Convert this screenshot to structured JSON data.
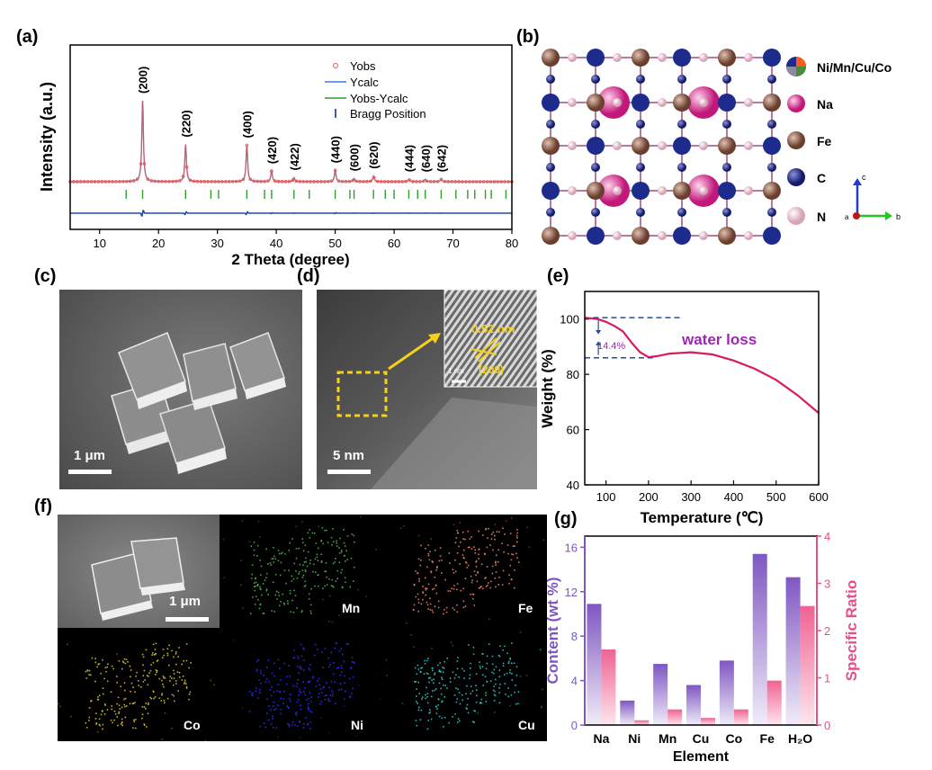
{
  "panels": {
    "a": "(a)",
    "b": "(b)",
    "c": "(c)",
    "d": "(d)",
    "e": "(e)",
    "f": "(f)",
    "g": "(g)"
  },
  "xrd": {
    "ylabel": "Intensity (a.u.)",
    "xlabel": "2 Theta (degree)",
    "legend": [
      "Yobs",
      "Ycalc",
      "Yobs-Ycalc",
      "Bragg Position"
    ],
    "peak_labels": [
      "(200)",
      "(220)",
      "(400)",
      "(420)",
      "(422)",
      "(440)",
      "(600)",
      "(620)",
      "(444)",
      "(640)",
      "(642)"
    ]
  },
  "crystal": {
    "legend": [
      "Ni/Mn/Cu/Co",
      "Na",
      "Fe",
      "C",
      "N"
    ],
    "axes": [
      "c",
      "b",
      "a"
    ]
  },
  "sem_c": {
    "scale": "1 μm"
  },
  "tem_d": {
    "scale": "5 nm",
    "d_spacing": "0.52 nm",
    "plane": "(200)",
    "inset_scale": "1 nm"
  },
  "tga": {
    "ylabel": "Weight (%)",
    "xlabel": "Temperature (℃)",
    "annotation": "water loss",
    "loss": "14.4%"
  },
  "eds": {
    "scale": "1 μm",
    "maps": [
      "Mn",
      "Fe",
      "Co",
      "Ni",
      "Cu"
    ]
  },
  "composition": {
    "ylabel_left": "Content (wt %)",
    "ylabel_right": "Specific Ratio",
    "xlabel": "Element"
  },
  "colors": {
    "yobs": "#e05a5a",
    "ycalc": "#3b7dd8",
    "diff": "#1f4e9a",
    "bragg": "#2e9e2e",
    "tga_line": "#d81b60",
    "tga_text": "#9c27b0",
    "content_bar": "#7e57c2",
    "ratio_bar": "#f06292",
    "ratio_axis": "#e84e8a"
  },
  "chart_data": [
    {
      "type": "line",
      "title": "",
      "xlabel": "2 Theta (degree)",
      "ylabel": "Intensity (a.u.)",
      "xlim": [
        5,
        80
      ],
      "xticks": [
        10,
        20,
        30,
        40,
        50,
        60,
        70,
        80
      ],
      "peaks": [
        {
          "x": 17.3,
          "label": "(200)",
          "h": 1.0
        },
        {
          "x": 24.6,
          "label": "(220)",
          "h": 0.46
        },
        {
          "x": 35.0,
          "label": "(400)",
          "h": 0.45
        },
        {
          "x": 39.2,
          "label": "(420)",
          "h": 0.13
        },
        {
          "x": 43.0,
          "label": "(422)",
          "h": 0.05
        },
        {
          "x": 50.0,
          "label": "(440)",
          "h": 0.14
        },
        {
          "x": 53.2,
          "label": "(600)",
          "h": 0.04
        },
        {
          "x": 56.5,
          "label": "(620)",
          "h": 0.07
        },
        {
          "x": 62.5,
          "label": "(444)",
          "h": 0.03
        },
        {
          "x": 65.3,
          "label": "(640)",
          "h": 0.03
        },
        {
          "x": 68.0,
          "label": "(642)",
          "h": 0.03
        }
      ],
      "bragg_positions": [
        14.5,
        17.3,
        24.6,
        28.9,
        30.2,
        35.0,
        38.0,
        39.2,
        43.0,
        45.6,
        50.0,
        52.5,
        53.2,
        56.5,
        58.5,
        60.0,
        62.5,
        64.0,
        65.3,
        68.0,
        70.5,
        72.5,
        73.7,
        75.5,
        76.5,
        79.0
      ],
      "series": [
        {
          "name": "Yobs"
        },
        {
          "name": "Ycalc"
        },
        {
          "name": "Yobs-Ycalc"
        },
        {
          "name": "Bragg Position"
        }
      ]
    },
    {
      "type": "line",
      "title": "",
      "xlabel": "Temperature (℃)",
      "ylabel": "Weight (%)",
      "xlim": [
        50,
        600
      ],
      "ylim": [
        40,
        110
      ],
      "xticks": [
        100,
        200,
        300,
        400,
        500,
        600
      ],
      "yticks": [
        40,
        60,
        80,
        100
      ],
      "x": [
        50,
        80,
        100,
        120,
        140,
        160,
        180,
        200,
        220,
        250,
        300,
        350,
        400,
        450,
        500,
        550,
        600
      ],
      "y": [
        100.5,
        100,
        99,
        97.5,
        95.5,
        91.5,
        88,
        86.2,
        86.6,
        87.5,
        88,
        87.2,
        85,
        82,
        78,
        72.5,
        66
      ]
    },
    {
      "type": "bar",
      "title": "",
      "xlabel": "Element",
      "ylabel": "Content (wt %)",
      "categories": [
        "Na",
        "Ni",
        "Mn",
        "Cu",
        "Co",
        "Fe",
        "H₂O"
      ],
      "ylim": [
        0,
        17
      ],
      "yticks": [
        0,
        4,
        8,
        12,
        16
      ],
      "y2lim": [
        0,
        4
      ],
      "y2ticks": [
        0,
        1,
        2,
        3,
        4
      ],
      "series": [
        {
          "name": "Content (wt %)",
          "axis": "left",
          "values": [
            10.9,
            2.2,
            5.5,
            3.6,
            5.8,
            15.4,
            13.3
          ]
        },
        {
          "name": "Specific Ratio",
          "axis": "right",
          "values": [
            1.6,
            0.1,
            0.33,
            0.15,
            0.33,
            0.94,
            2.52
          ]
        }
      ]
    }
  ]
}
